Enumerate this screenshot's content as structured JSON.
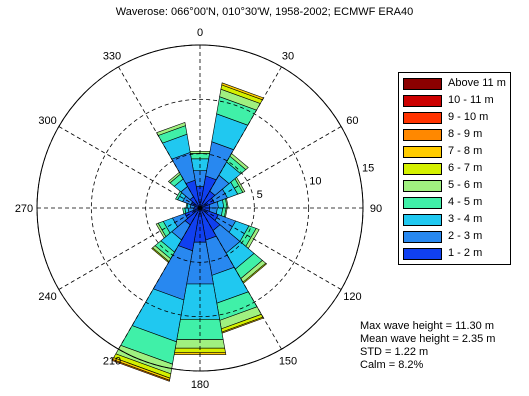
{
  "title": "Waverose: 066°00'N, 010°30'W, 1958-2002; ECMWF ERA40",
  "chart_data": {
    "type": "polar-bar",
    "direction_labels": [
      {
        "deg": 0,
        "label": "0"
      },
      {
        "deg": 30,
        "label": "30"
      },
      {
        "deg": 60,
        "label": "60"
      },
      {
        "deg": 90,
        "label": "90"
      },
      {
        "deg": 120,
        "label": "120"
      },
      {
        "deg": 150,
        "label": "150"
      },
      {
        "deg": 180,
        "label": "180"
      },
      {
        "deg": 210,
        "label": "210"
      },
      {
        "deg": 240,
        "label": "240"
      },
      {
        "deg": 270,
        "label": "270"
      },
      {
        "deg": 300,
        "label": "300"
      },
      {
        "deg": 330,
        "label": "330"
      }
    ],
    "radial_ticks": [
      5,
      10,
      15
    ],
    "rmax": 15,
    "bin_width_deg": 20,
    "bins": [
      {
        "deg": 0,
        "values": [
          2.0,
          1.5,
          1.1,
          0.5,
          0.2
        ]
      },
      {
        "deg": 20,
        "values": [
          3.0,
          3.2,
          2.6,
          1.6,
          0.7,
          0.4,
          0.2
        ]
      },
      {
        "deg": 40,
        "values": [
          1.8,
          1.7,
          1.4,
          0.6,
          0.3
        ]
      },
      {
        "deg": 60,
        "values": [
          1.4,
          1.3,
          1.0,
          0.5,
          0.2
        ]
      },
      {
        "deg": 80,
        "values": [
          0.9,
          0.8,
          0.5,
          0.3,
          0.1
        ]
      },
      {
        "deg": 100,
        "values": [
          0.9,
          0.7,
          0.5,
          0.3,
          0.1
        ]
      },
      {
        "deg": 120,
        "values": [
          1.8,
          1.7,
          1.3,
          0.7,
          0.3
        ]
      },
      {
        "deg": 140,
        "values": [
          2.4,
          2.4,
          1.7,
          1.0,
          0.4,
          0.1
        ]
      },
      {
        "deg": 160,
        "values": [
          3.0,
          3.3,
          2.6,
          1.6,
          0.8,
          0.3,
          0.1
        ]
      },
      {
        "deg": 180,
        "values": [
          3.2,
          3.9,
          3.3,
          1.9,
          0.8,
          0.4,
          0.2
        ]
      },
      {
        "deg": 200,
        "values": [
          4.0,
          4.6,
          3.9,
          2.1,
          0.9,
          0.4,
          0.2,
          0.1
        ]
      },
      {
        "deg": 220,
        "values": [
          1.8,
          1.6,
          1.3,
          0.7,
          0.3,
          0.1
        ]
      },
      {
        "deg": 240,
        "values": [
          1.5,
          1.2,
          0.9,
          0.5,
          0.2
        ]
      },
      {
        "deg": 260,
        "values": [
          0.6,
          0.5,
          0.3,
          0.2
        ]
      },
      {
        "deg": 280,
        "values": [
          0.5,
          0.4,
          0.3,
          0.1
        ]
      },
      {
        "deg": 300,
        "values": [
          0.9,
          0.8,
          0.5,
          0.2
        ]
      },
      {
        "deg": 320,
        "values": [
          1.2,
          1.1,
          0.8,
          0.5,
          0.2
        ]
      },
      {
        "deg": 340,
        "values": [
          2.6,
          2.6,
          1.7,
          0.8,
          0.3
        ]
      }
    ],
    "legend": [
      {
        "label": "Above 11  m",
        "color": "#8b0000"
      },
      {
        "label": "10 - 11  m",
        "color": "#cc0000"
      },
      {
        "label": "9 - 10  m",
        "color": "#ff3300"
      },
      {
        "label": "8 - 9  m",
        "color": "#ff8800"
      },
      {
        "label": "7 - 8  m",
        "color": "#ffcc00"
      },
      {
        "label": "6 - 7  m",
        "color": "#d4f000"
      },
      {
        "label": "5 - 6  m",
        "color": "#a0f080"
      },
      {
        "label": "4 - 5  m",
        "color": "#40f0a8"
      },
      {
        "label": "3 - 4  m",
        "color": "#20c8f0"
      },
      {
        "label": "2 - 3  m",
        "color": "#2888f0"
      },
      {
        "label": "1 - 2  m",
        "color": "#1040f0"
      }
    ],
    "grid": true
  },
  "stats": {
    "max": "Max wave height = 11.30 m",
    "mean": "Mean wave height = 2.35 m",
    "std": "STD = 1.22 m",
    "calm": "Calm = 8.2%"
  }
}
